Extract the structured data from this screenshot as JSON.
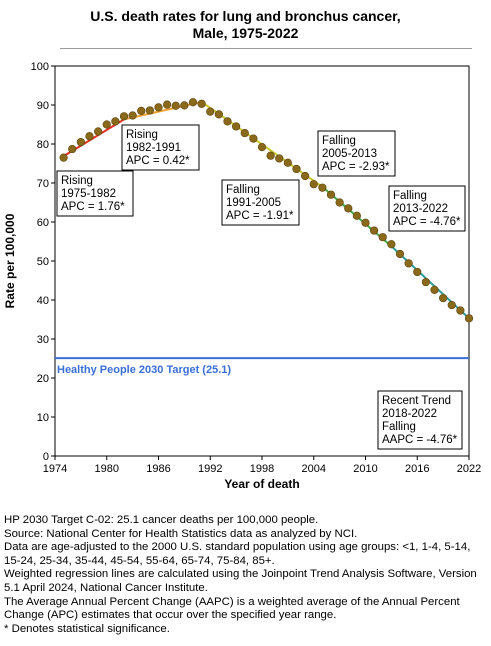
{
  "title_line1": "U.S. death rates for lung and bronchus cancer,",
  "title_line2": "Male,  1975-2022",
  "chart_data": {
    "type": "scatter",
    "xlabel": "Year of death",
    "ylabel": "Rate per 100,000",
    "xlim": [
      1974,
      2022
    ],
    "ylim": [
      0,
      100
    ],
    "xticks": [
      1974,
      1980,
      1986,
      1992,
      1998,
      2004,
      2010,
      2016,
      2022
    ],
    "yticks": [
      0,
      10,
      20,
      30,
      40,
      50,
      60,
      70,
      80,
      90,
      100
    ],
    "grid": false,
    "points": [
      [
        1975,
        76.5
      ],
      [
        1976,
        78.7
      ],
      [
        1977,
        80.5
      ],
      [
        1978,
        82.0
      ],
      [
        1979,
        83.2
      ],
      [
        1980,
        85.0
      ],
      [
        1981,
        85.8
      ],
      [
        1982,
        87.1
      ],
      [
        1983,
        87.3
      ],
      [
        1984,
        88.5
      ],
      [
        1985,
        88.6
      ],
      [
        1986,
        89.4
      ],
      [
        1987,
        90.1
      ],
      [
        1988,
        89.8
      ],
      [
        1989,
        89.9
      ],
      [
        1990,
        90.7
      ],
      [
        1991,
        90.3
      ],
      [
        1992,
        88.3
      ],
      [
        1993,
        87.6
      ],
      [
        1994,
        85.8
      ],
      [
        1995,
        84.5
      ],
      [
        1996,
        82.8
      ],
      [
        1997,
        81.4
      ],
      [
        1998,
        79.2
      ],
      [
        1999,
        77.0
      ],
      [
        2000,
        76.3
      ],
      [
        2001,
        75.2
      ],
      [
        2002,
        73.6
      ],
      [
        2003,
        71.8
      ],
      [
        2004,
        69.7
      ],
      [
        2005,
        68.8
      ],
      [
        2006,
        67.0
      ],
      [
        2007,
        65.0
      ],
      [
        2008,
        63.5
      ],
      [
        2009,
        61.6
      ],
      [
        2010,
        59.8
      ],
      [
        2011,
        57.8
      ],
      [
        2012,
        56.1
      ],
      [
        2013,
        54.3
      ],
      [
        2014,
        51.8
      ],
      [
        2015,
        49.4
      ],
      [
        2016,
        47.2
      ],
      [
        2017,
        44.6
      ],
      [
        2018,
        42.6
      ],
      [
        2019,
        40.5
      ],
      [
        2020,
        38.7
      ],
      [
        2021,
        37.3
      ],
      [
        2022,
        35.3
      ]
    ],
    "segments": [
      {
        "start": 1975,
        "end": 1982,
        "y_start": 76.9,
        "y_end": 86.3,
        "color": "#e0301e"
      },
      {
        "start": 1982,
        "end": 1991,
        "y_start": 86.3,
        "y_end": 90.8,
        "color": "#f0a030"
      },
      {
        "start": 1991,
        "end": 2005,
        "y_start": 90.8,
        "y_end": 69.0,
        "color": "#c9c92a"
      },
      {
        "start": 2005,
        "end": 2013,
        "y_start": 69.0,
        "y_end": 53.8,
        "color": "#44aa44"
      },
      {
        "start": 2013,
        "end": 2022,
        "y_start": 53.8,
        "y_end": 35.3,
        "color": "#2c9a9a"
      }
    ],
    "marker_color": "#8a6a1a",
    "target": {
      "value": 25.1,
      "label": "Healthy People 2030 Target (25.1)",
      "color": "#3a6fd8"
    },
    "annotations": [
      {
        "lines": [
          "Rising",
          "1975-1982",
          "APC =  1.76*"
        ]
      },
      {
        "lines": [
          "Rising",
          "1982-1991",
          "APC =  0.42*"
        ]
      },
      {
        "lines": [
          "Falling",
          "1991-2005",
          "APC = -1.91*"
        ]
      },
      {
        "lines": [
          "Falling",
          "2005-2013",
          "APC = -2.93*"
        ]
      },
      {
        "lines": [
          "Falling",
          "2013-2022",
          "APC = -4.76*"
        ]
      },
      {
        "lines": [
          "Recent Trend",
          "2018-2022",
          "Falling",
          "AAPC = -4.76*"
        ]
      }
    ]
  },
  "notes": [
    "HP 2030 Target C-02: 25.1 cancer deaths per 100,000 people.",
    "Source: National Center for Health Statistics data as analyzed by NCI.",
    "Data are age-adjusted to the 2000 U.S. standard population using age groups: <1, 1-4, 5-14, 15-24, 25-34, 35-44, 45-54, 55-64, 65-74, 75-84, 85+.",
    "Weighted regression lines are calculated using the Joinpoint Trend Analysis Software, Version 5.1 April 2024, National Cancer Institute.",
    "The Average Annual Percent Change (AAPC) is a weighted average of the Annual Percent Change (APC) estimates that occur over the specified year range.",
    "* Denotes statistical significance."
  ]
}
